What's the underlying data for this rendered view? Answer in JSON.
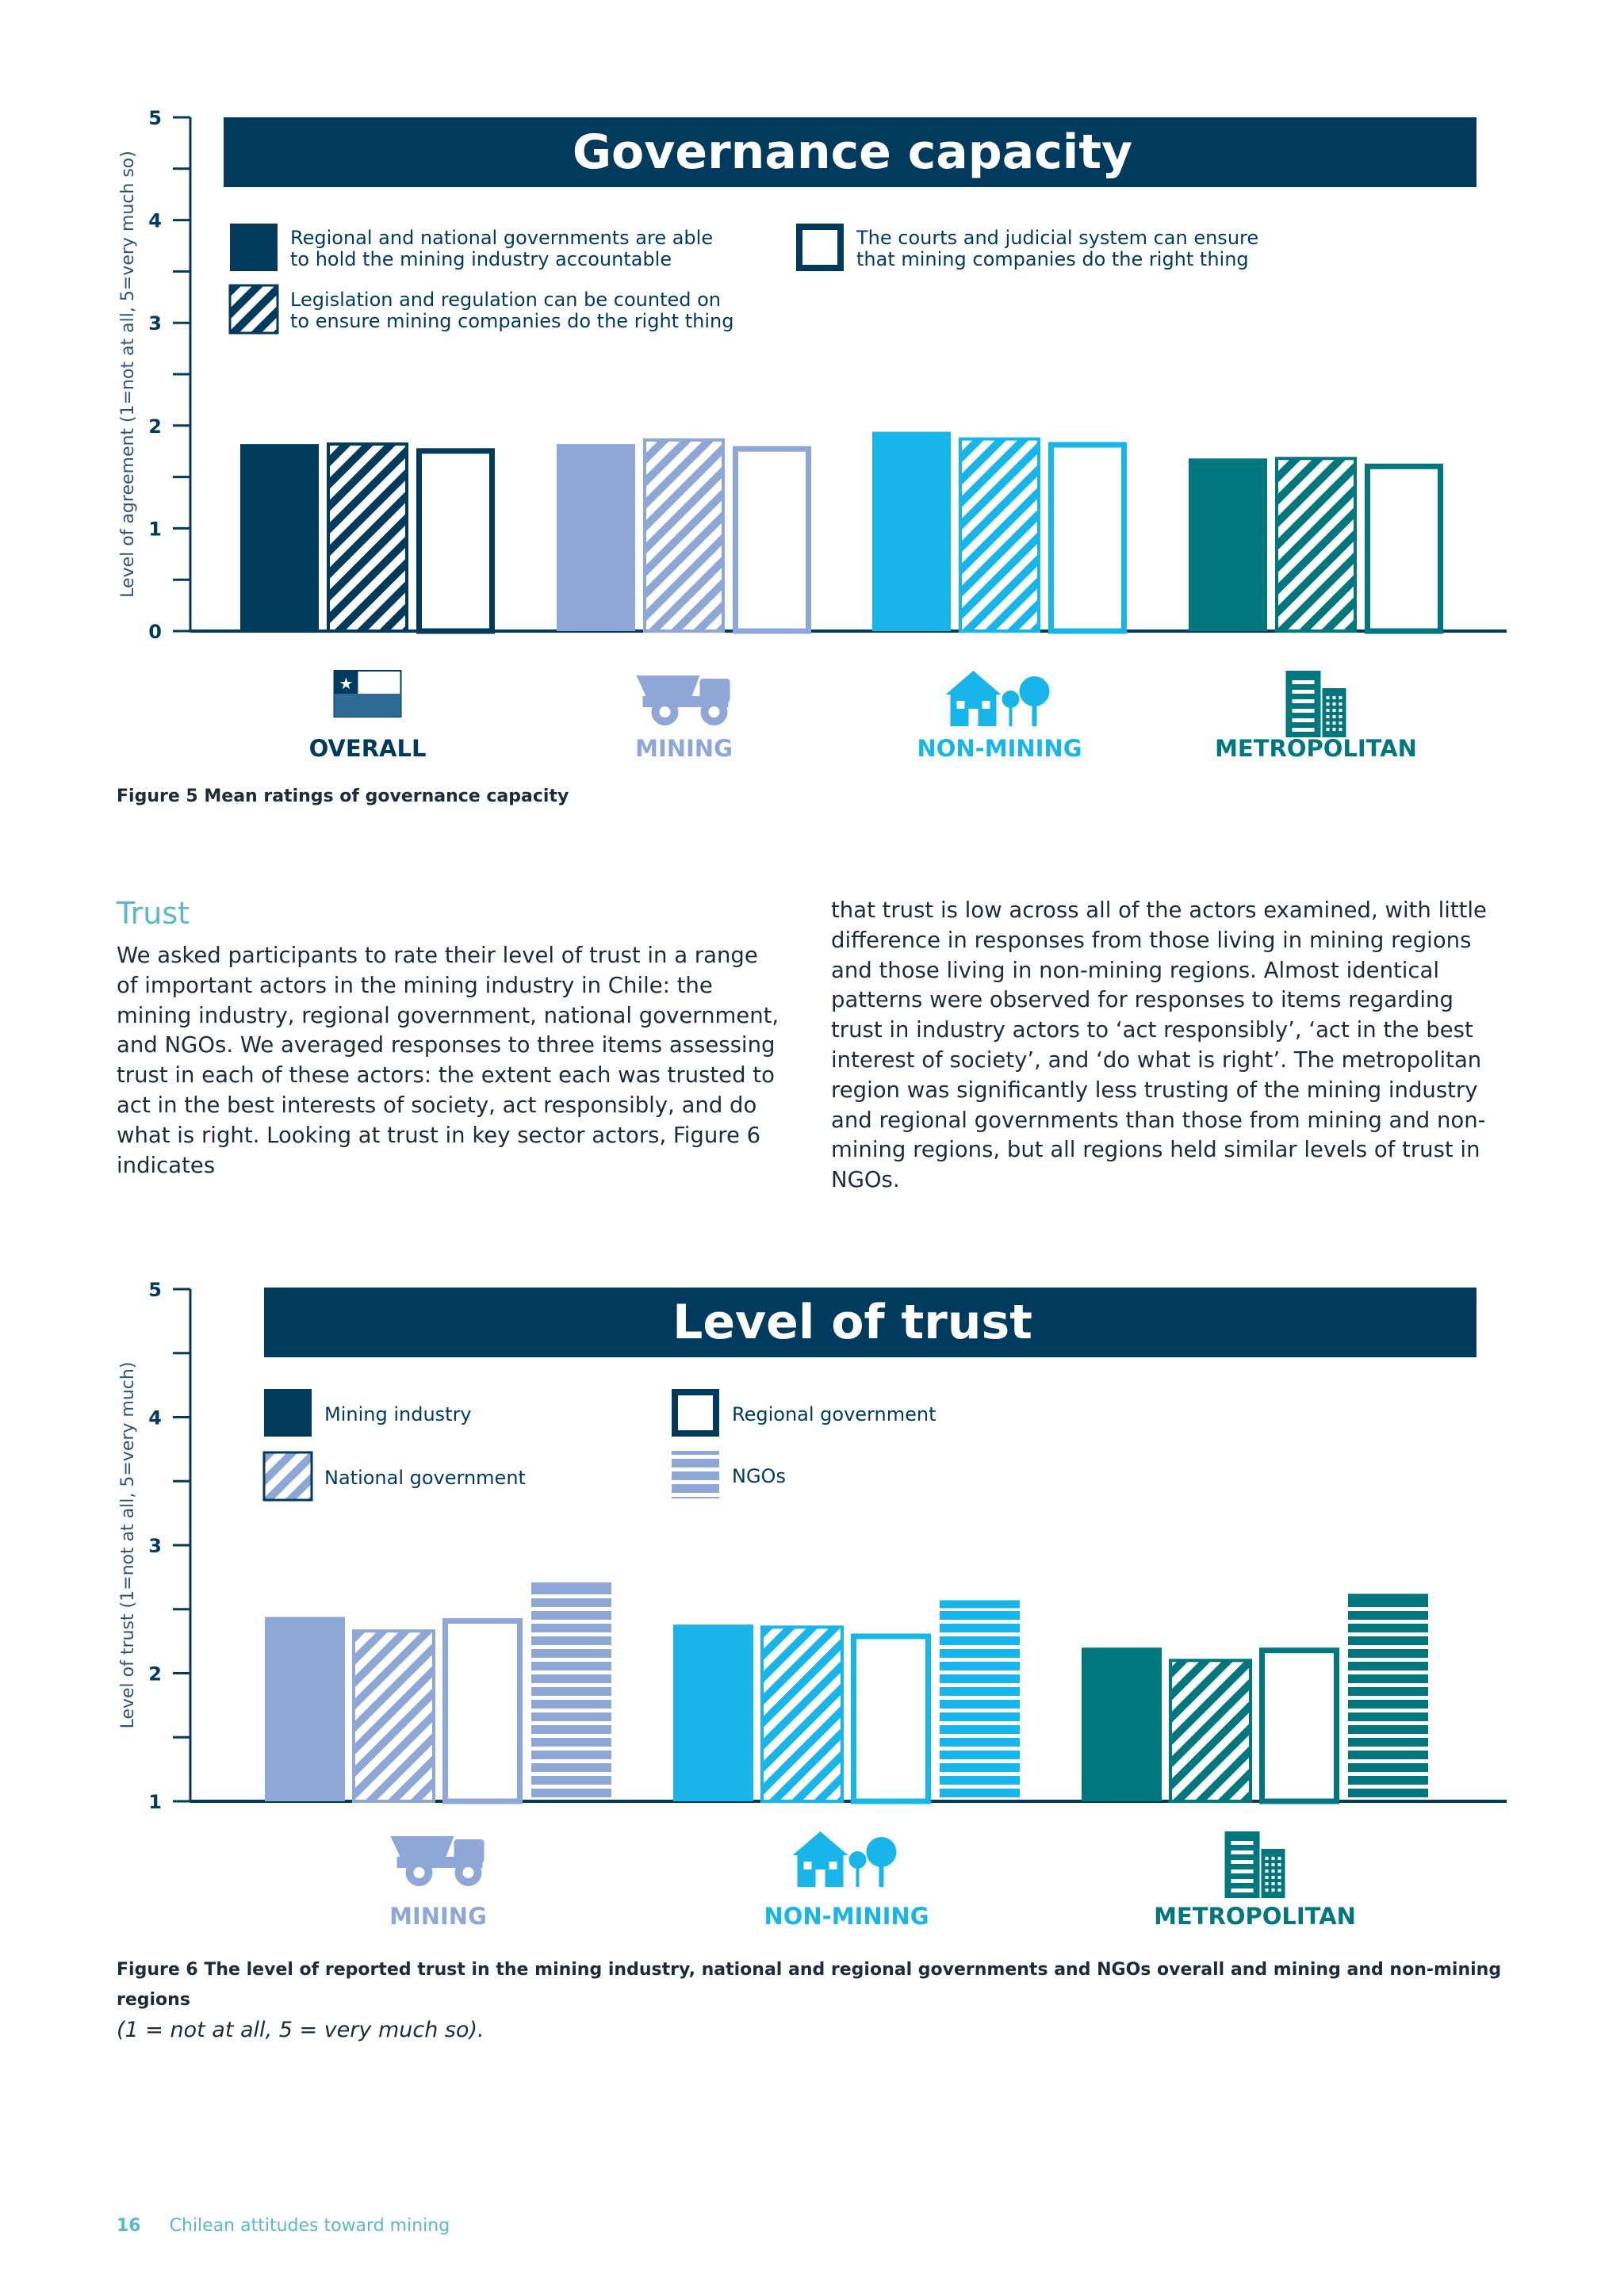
{
  "figure5": {
    "title": "Governance capacity",
    "yaxis_label": "Level of agreement (1=not at all, 5=very much so)",
    "legend": [
      "Regional and national governments are able|to hold the mining industry accountable",
      "Legislation and regulation can be counted on|to ensure mining companies do the right thing",
      "The courts and judicial system can ensure|that mining companies do the right thing"
    ],
    "caption": "Figure 5 Mean ratings of governance capacity"
  },
  "figure6": {
    "title": "Level of trust",
    "yaxis_label": "Level of trust (1=not at all, 5=very much)",
    "legend": [
      "Mining industry",
      "National government",
      "Regional government",
      "NGOs"
    ],
    "caption_bold": "Figure 6 The level of reported trust in the mining industry, national and regional governments and NGOs overall and mining and non-mining regions",
    "caption_italic": "(1 = not at all, 5 = very much so)."
  },
  "section": {
    "heading": "Trust",
    "para_left": "We asked participants to rate their level of trust in a range of important actors in the mining industry in Chile: the mining industry, regional government, national government, and NGOs. We averaged responses to three items assessing trust in each of these actors: the extent each was trusted to act in the best interests of society, act responsibly, and do what is right. Looking at trust in key sector actors, Figure 6 indicates",
    "para_right": "that trust is low across all of the actors examined, with little difference in responses from those living in mining regions and those living in non-mining regions. Almost identical patterns were observed for responses to items regarding trust in industry actors to ‘act responsibly’, ‘act in the best interest of society’, and ‘do what is right’. The metropolitan region was significantly less trusting of the mining industry and regional governments than those from mining and non-mining regions, but all regions held similar levels of trust in NGOs."
  },
  "footer": {
    "page_number": "16",
    "title": "Chilean attitudes toward mining"
  },
  "chart_data": [
    {
      "type": "bar",
      "title": "Governance capacity",
      "ylabel": "Level of agreement (1=not at all, 5=very much so)",
      "ylim": [
        0,
        5
      ],
      "yticks": [
        0,
        1,
        2,
        3,
        4,
        5
      ],
      "categories": [
        "OVERALL",
        "MINING",
        "NON-MINING",
        "METROPOLITAN"
      ],
      "category_colors": [
        "#003a5d",
        "#8ea7d6",
        "#17b5ea",
        "#00777f"
      ],
      "category_icons": [
        "chile-flag-icon",
        "mining-truck-icon",
        "house-tree-icon",
        "city-building-icon"
      ],
      "series": [
        {
          "name": "Regional and national governments are able to hold the mining industry accountable",
          "style": "solid",
          "values": [
            1.82,
            1.82,
            1.94,
            1.68
          ]
        },
        {
          "name": "Legislation and regulation can be counted on to ensure mining companies do the right thing",
          "style": "hatched",
          "values": [
            1.82,
            1.86,
            1.87,
            1.68
          ]
        },
        {
          "name": "The courts and judicial system can ensure that mining companies do the right thing",
          "style": "outline",
          "values": [
            1.78,
            1.8,
            1.84,
            1.63
          ]
        }
      ]
    },
    {
      "type": "bar",
      "title": "Level of trust",
      "ylabel": "Level of trust (1=not at all, 5=very much)",
      "ylim": [
        1,
        5
      ],
      "yticks": [
        1,
        2,
        3,
        4,
        5
      ],
      "categories": [
        "MINING",
        "NON-MINING",
        "METROPOLITAN"
      ],
      "category_colors": [
        "#8ea7d6",
        "#17b5ea",
        "#00777f"
      ],
      "category_icons": [
        "mining-truck-icon",
        "house-tree-icon",
        "city-building-icon"
      ],
      "series": [
        {
          "name": "Mining industry",
          "style": "solid",
          "values": [
            2.44,
            2.38,
            2.2
          ]
        },
        {
          "name": "National government",
          "style": "hatched",
          "values": [
            2.33,
            2.36,
            2.1
          ]
        },
        {
          "name": "Regional government",
          "style": "outline",
          "values": [
            2.43,
            2.31,
            2.2
          ]
        },
        {
          "name": "NGOs",
          "style": "striped",
          "values": [
            2.71,
            2.57,
            2.62
          ]
        }
      ]
    }
  ]
}
